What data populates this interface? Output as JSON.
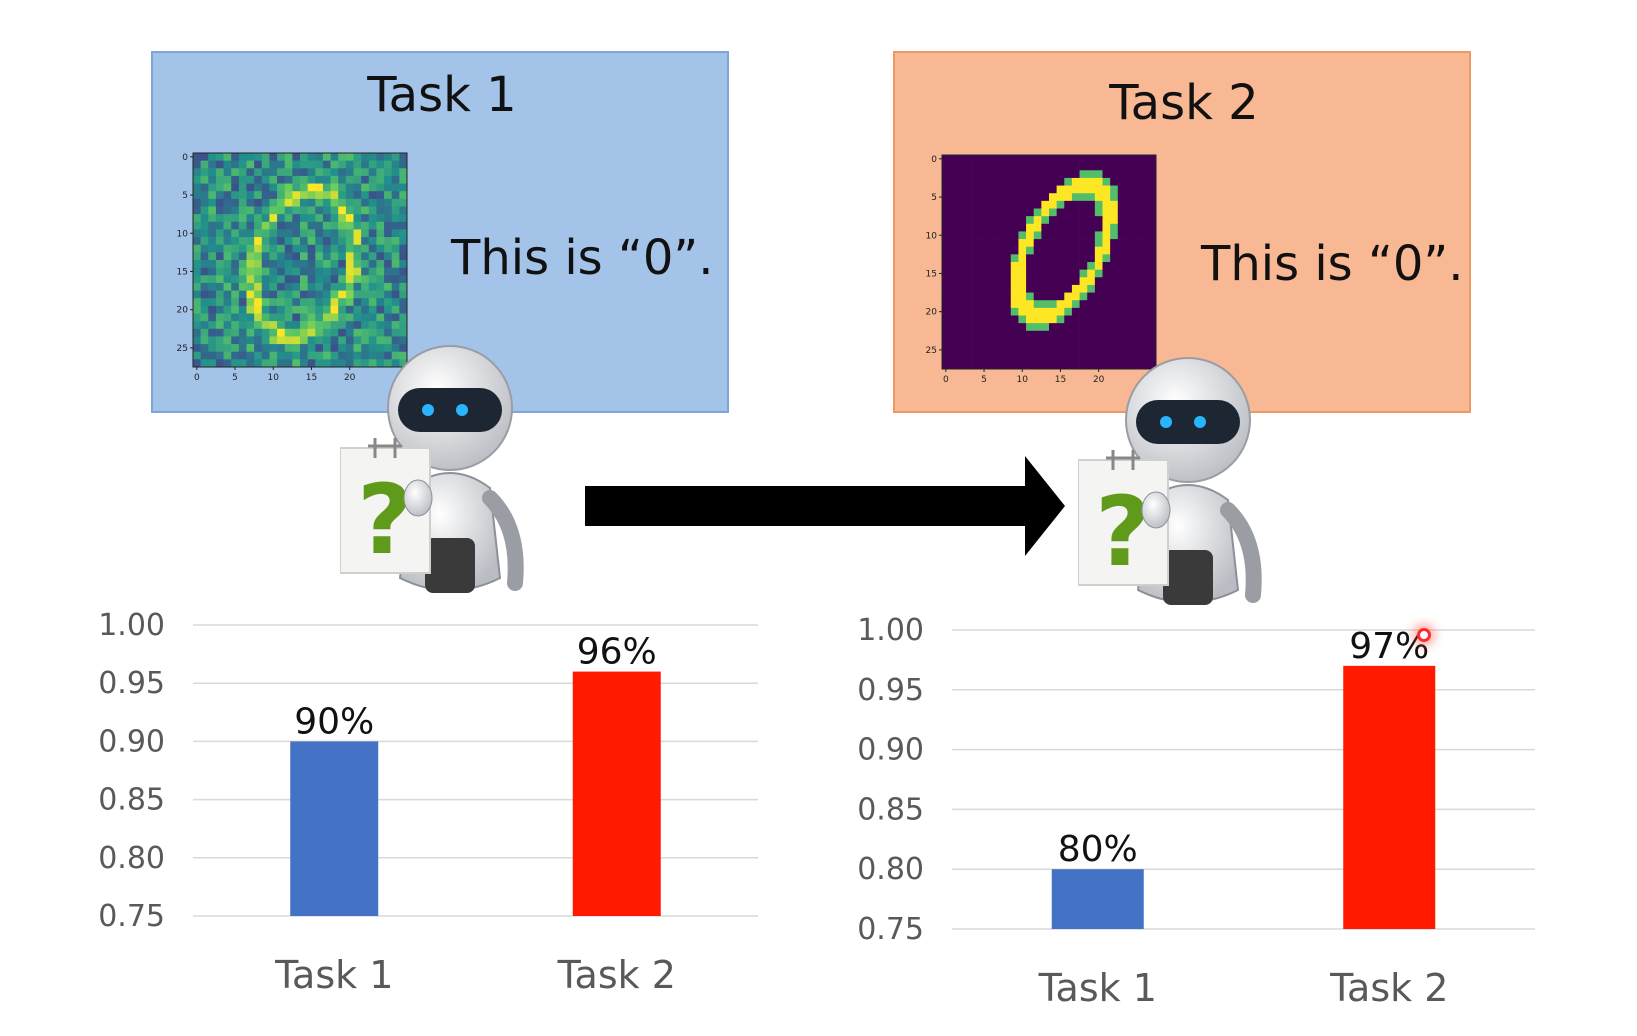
{
  "panels": [
    {
      "title": "Task 1",
      "caption": "This is “0”.",
      "image": "noisy-digit-zero"
    },
    {
      "title": "Task 2",
      "caption": "This is “0”.",
      "image": "clean-digit-zero"
    }
  ],
  "digit_axes": {
    "x_ticks": [
      "0",
      "5",
      "10",
      "15",
      "20"
    ],
    "y_ticks": [
      "0",
      "5",
      "10",
      "15",
      "20",
      "25"
    ]
  },
  "colors": {
    "task1_box": "#a4c3e8",
    "task2_box": "#f8b894",
    "bar_task1": "#4472c4",
    "bar_task2": "#ff1a00",
    "question_mark": "#5f9a1a"
  },
  "icons": [
    "robot-holding-question-sign-icon",
    "right-arrow-icon"
  ],
  "chart_data": [
    {
      "type": "bar",
      "categories": [
        "Task 1",
        "Task 2"
      ],
      "values": [
        0.9,
        0.96
      ],
      "data_labels": [
        "90%",
        "96%"
      ],
      "yticks": [
        "1.00",
        "0.95",
        "0.90",
        "0.85",
        "0.80",
        "0.75"
      ],
      "ylim": [
        0.75,
        1.0
      ],
      "grid": true,
      "legend": "none"
    },
    {
      "type": "bar",
      "categories": [
        "Task 1",
        "Task 2"
      ],
      "values": [
        0.8,
        0.97
      ],
      "data_labels": [
        "80%",
        "97%"
      ],
      "yticks": [
        "1.00",
        "0.95",
        "0.90",
        "0.85",
        "0.80",
        "0.75"
      ],
      "ylim": [
        0.75,
        1.0
      ],
      "grid": true,
      "legend": "none"
    }
  ]
}
